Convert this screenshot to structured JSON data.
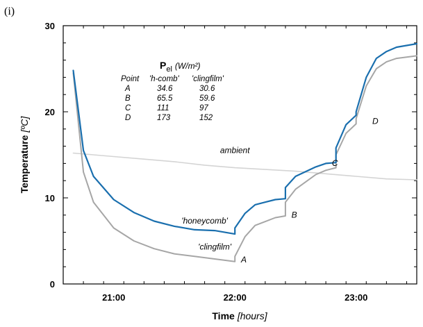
{
  "panel_label": "(i)",
  "colors": {
    "honeycomb": "#1a6fae",
    "clingfilm": "#a6a6a6",
    "ambient": "#d4d4d4",
    "axis": "#000000"
  },
  "chart_data": {
    "type": "line",
    "title": "",
    "xlabel": "Time",
    "xunit": "[hours]",
    "ylabel": "Temperature",
    "yunit": "[ºC]",
    "xlim": [
      "20:35",
      "23:30"
    ],
    "ylim": [
      0,
      30
    ],
    "x_ticks": [
      "21:00",
      "22:00",
      "23:00"
    ],
    "y_ticks": [
      0,
      10,
      20,
      30
    ],
    "grid": false,
    "series": [
      {
        "name": "'honeycomb'",
        "color": "#1a6fae",
        "x": [
          "20:40",
          "20:45",
          "20:50",
          "21:00",
          "21:10",
          "21:20",
          "21:30",
          "21:40",
          "21:50",
          "22:00",
          "22:00",
          "22:05",
          "22:10",
          "22:20",
          "22:25",
          "22:25",
          "22:30",
          "22:40",
          "22:45",
          "22:50",
          "22:50",
          "22:55",
          "23:00",
          "23:00",
          "23:05",
          "23:10",
          "23:15",
          "23:20",
          "23:30"
        ],
        "y": [
          24.8,
          15.5,
          12.5,
          9.8,
          8.3,
          7.3,
          6.7,
          6.3,
          6.2,
          5.8,
          6.5,
          8.2,
          9.2,
          9.8,
          9.9,
          11.2,
          12.5,
          13.6,
          14.0,
          14.1,
          15.8,
          18.5,
          19.6,
          20.0,
          24.0,
          26.2,
          27.0,
          27.5,
          27.9
        ]
      },
      {
        "name": "'clingfilm'",
        "color": "#a6a6a6",
        "x": [
          "20:40",
          "20:45",
          "20:50",
          "21:00",
          "21:10",
          "21:20",
          "21:30",
          "21:40",
          "21:50",
          "22:00",
          "22:00",
          "22:05",
          "22:10",
          "22:20",
          "22:25",
          "22:25",
          "22:30",
          "22:40",
          "22:45",
          "22:50",
          "22:50",
          "22:55",
          "23:00",
          "23:00",
          "23:05",
          "23:10",
          "23:15",
          "23:20",
          "23:30"
        ],
        "y": [
          24.5,
          13.0,
          9.5,
          6.5,
          5.0,
          4.1,
          3.5,
          3.2,
          2.9,
          2.6,
          3.2,
          5.5,
          6.8,
          7.7,
          7.9,
          9.5,
          11.0,
          12.7,
          13.2,
          13.5,
          15.0,
          17.5,
          18.6,
          19.2,
          23.0,
          25.0,
          25.8,
          26.2,
          26.5
        ]
      },
      {
        "name": "ambient",
        "color": "#d4d4d4",
        "x": [
          "20:40",
          "20:50",
          "21:00",
          "21:15",
          "21:30",
          "21:45",
          "22:00",
          "22:15",
          "22:30",
          "22:45",
          "23:00",
          "23:15",
          "23:30"
        ],
        "y": [
          15.2,
          15.0,
          14.8,
          14.5,
          14.2,
          13.8,
          13.5,
          13.3,
          13.1,
          12.8,
          12.5,
          12.2,
          12.1
        ]
      }
    ],
    "annotations": [
      {
        "text": "ambient",
        "x": "22:00",
        "y": 15.2
      },
      {
        "text": "'honeycomb'",
        "x": "21:45",
        "y": 7.0
      },
      {
        "text": "'clingfilm'",
        "x": "21:50",
        "y": 4.0
      },
      {
        "text": "A",
        "x": "22:03",
        "y": 2.5
      },
      {
        "text": "B",
        "x": "22:28",
        "y": 7.7
      },
      {
        "text": "C",
        "x": "22:48",
        "y": 13.7
      },
      {
        "text": "D",
        "x": "23:08",
        "y": 18.6
      }
    ],
    "inset_table": {
      "title_main": "P",
      "title_sub": "el",
      "title_unit": "(W/m²)",
      "headers": [
        "Point",
        "'h-comb'",
        "'clingfilm'"
      ],
      "rows": [
        [
          "A",
          "34.6",
          "30.6"
        ],
        [
          "B",
          "65.5",
          "59.6"
        ],
        [
          "C",
          "111",
          "97"
        ],
        [
          "D",
          "173",
          "152"
        ]
      ]
    }
  }
}
